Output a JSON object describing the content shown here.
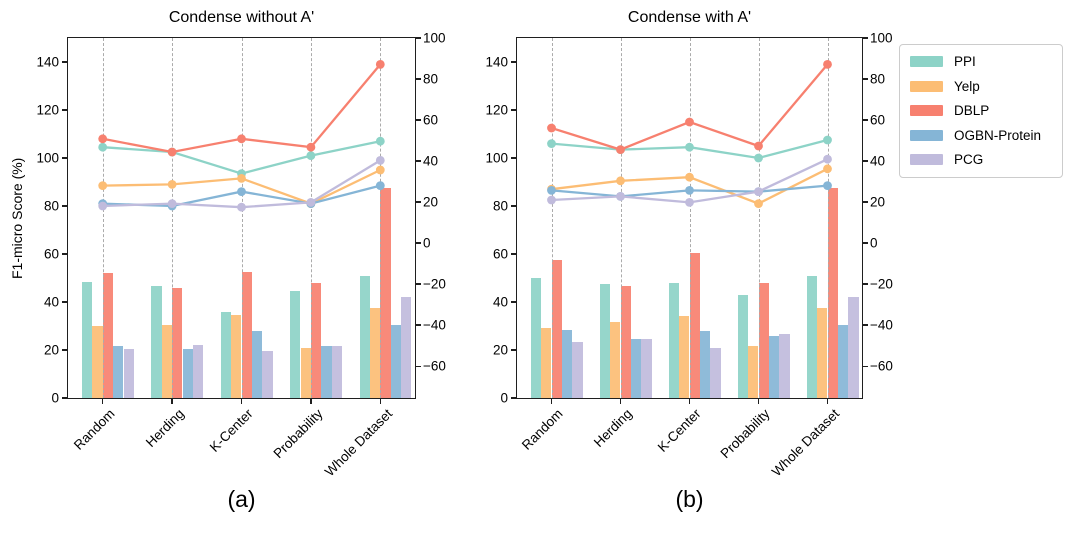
{
  "figure": {
    "background": "#ffffff",
    "legend": {
      "position": "top-right",
      "entries": [
        {
          "label": "PPI",
          "color": "#8dd3c7"
        },
        {
          "label": "Yelp",
          "color": "#fcbd74"
        },
        {
          "label": "DBLP",
          "color": "#f7806f"
        },
        {
          "label": "OGBN-Protein",
          "color": "#85b5d6"
        },
        {
          "label": "PCG",
          "color": "#c0bbdc"
        }
      ]
    }
  },
  "chart_data": [
    {
      "type": "bar+line",
      "title": "Condense without A'",
      "caption": "(a)",
      "categories": [
        "Random",
        "Herding",
        "K-Center",
        "Probability",
        "Whole Dataset"
      ],
      "left_axis": {
        "label": "F1-micro Score (%)",
        "ticks": [
          0,
          20,
          40,
          60,
          80,
          100,
          120,
          140
        ],
        "range": [
          0,
          150
        ]
      },
      "right_axis": {
        "ticks": [
          100,
          80,
          60,
          40,
          20,
          0,
          -20,
          -40,
          -60
        ],
        "range": [
          -75.5,
          100
        ]
      },
      "grid": "vertical-dashed",
      "series": [
        {
          "name": "PPI",
          "color": "#8dd3c7",
          "bars": [
            48.5,
            46.5,
            36,
            44.5,
            51
          ],
          "line": [
            104.5,
            102.5,
            93.5,
            101,
            107
          ]
        },
        {
          "name": "Yelp",
          "color": "#fcbd74",
          "bars": [
            30,
            30.5,
            34.5,
            21,
            37.5
          ],
          "line": [
            88.5,
            89,
            91.5,
            81,
            95
          ]
        },
        {
          "name": "DBLP",
          "color": "#f7806f",
          "bars": [
            52,
            46,
            52.5,
            48,
            87.5
          ],
          "line": [
            108,
            102.5,
            108,
            104.5,
            139
          ]
        },
        {
          "name": "OGBN-Protein",
          "color": "#85b5d6",
          "bars": [
            21.5,
            20.5,
            28,
            21.5,
            30.5
          ],
          "line": [
            81,
            80,
            86,
            81,
            88.5
          ]
        },
        {
          "name": "PCG",
          "color": "#c0bbdc",
          "bars": [
            20.5,
            22,
            19.5,
            21.5,
            42
          ],
          "line": [
            80,
            81,
            79.5,
            81.5,
            99
          ]
        }
      ]
    },
    {
      "type": "bar+line",
      "title": "Condense with A'",
      "caption": "(b)",
      "categories": [
        "Random",
        "Herding",
        "K-Center",
        "Probability",
        "Whole Dataset"
      ],
      "left_axis": {
        "label": "",
        "ticks": [
          0,
          20,
          40,
          60,
          80,
          100,
          120,
          140
        ],
        "range": [
          0,
          150
        ]
      },
      "right_axis": {
        "ticks": [
          100,
          80,
          60,
          40,
          20,
          0,
          -20,
          -40,
          -60
        ],
        "range": [
          -75.5,
          100
        ]
      },
      "grid": "vertical-dashed",
      "series": [
        {
          "name": "PPI",
          "color": "#8dd3c7",
          "bars": [
            50,
            47.5,
            48,
            43,
            51
          ],
          "line": [
            106,
            103.5,
            104.5,
            100,
            107.5
          ]
        },
        {
          "name": "Yelp",
          "color": "#fcbd74",
          "bars": [
            29,
            31.5,
            34,
            21.5,
            37.5
          ],
          "line": [
            87,
            90.5,
            92,
            81,
            95.5
          ]
        },
        {
          "name": "DBLP",
          "color": "#f7806f",
          "bars": [
            57.5,
            46.5,
            60.5,
            48,
            87.5
          ],
          "line": [
            112.5,
            103.5,
            115,
            105,
            139
          ]
        },
        {
          "name": "OGBN-Protein",
          "color": "#85b5d6",
          "bars": [
            28.5,
            24.5,
            28,
            26,
            30.5
          ],
          "line": [
            86.5,
            84,
            86.5,
            86,
            88.5
          ]
        },
        {
          "name": "PCG",
          "color": "#c0bbdc",
          "bars": [
            23.5,
            24.5,
            21,
            26.5,
            42
          ],
          "line": [
            82.5,
            84,
            81.5,
            86,
            99.5
          ]
        }
      ]
    }
  ]
}
